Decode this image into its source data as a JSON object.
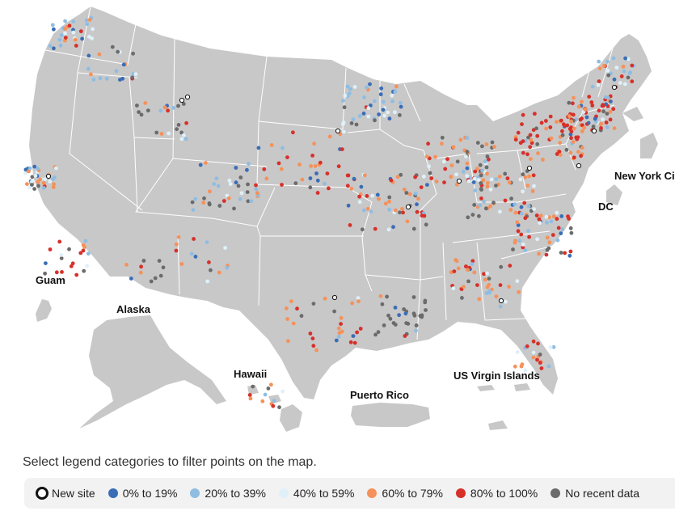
{
  "map": {
    "region_labels": {
      "guam": "Guam",
      "alaska": "Alaska",
      "hawaii": "Hawaii",
      "puerto_rico": "Puerto Rico",
      "usvi": "US Virgin Islands",
      "new_york_city": "New York Ci",
      "dc": "DC"
    },
    "land_color": "#c8c8c8",
    "border_color": "#ffffff"
  },
  "instructions": "Select legend categories to filter points on the map.",
  "legend": {
    "items": [
      {
        "key": "new",
        "label": "New site",
        "color": "#ffffff",
        "ring": "#111111"
      },
      {
        "key": "c0",
        "label": "0% to 19%",
        "color": "#3a6db5"
      },
      {
        "key": "c20",
        "label": "20% to 39%",
        "color": "#8fbde2"
      },
      {
        "key": "c40",
        "label": "40% to 59%",
        "color": "#dff0f8"
      },
      {
        "key": "c60",
        "label": "60% to 79%",
        "color": "#f5915a"
      },
      {
        "key": "c80",
        "label": "80% to 100%",
        "color": "#d7302a"
      },
      {
        "key": "nd",
        "label": "No recent data",
        "color": "#6b6b6b"
      }
    ]
  }
}
